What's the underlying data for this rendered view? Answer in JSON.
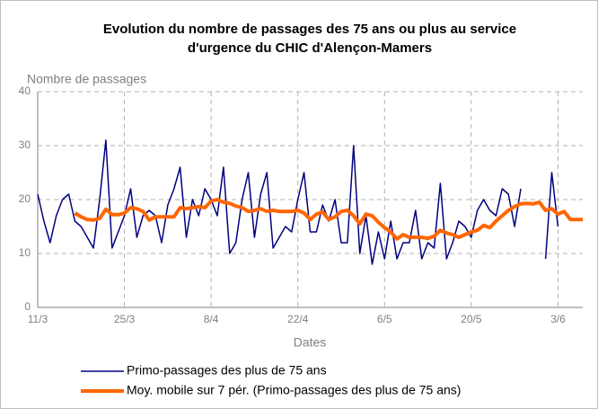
{
  "chart_data": {
    "type": "line",
    "title": "Evolution du nombre de passages des 75 ans ou plus au service",
    "title_line2": "d'urgence du CHIC d'Alençon-Mamers",
    "y_label": "Nombre de passages",
    "x_label": "Dates",
    "categories": [
      "11/3",
      null,
      null,
      null,
      null,
      null,
      null,
      null,
      null,
      null,
      null,
      null,
      null,
      null,
      "25/3",
      null,
      null,
      null,
      null,
      null,
      null,
      null,
      null,
      null,
      null,
      null,
      null,
      null,
      "8/4",
      null,
      null,
      null,
      null,
      null,
      null,
      null,
      null,
      null,
      null,
      null,
      null,
      null,
      "22/4",
      null,
      null,
      null,
      null,
      null,
      null,
      null,
      null,
      null,
      null,
      null,
      null,
      null,
      "6/5",
      null,
      null,
      null,
      null,
      null,
      null,
      null,
      null,
      null,
      null,
      null,
      null,
      null,
      "20/5",
      null,
      null,
      null,
      null,
      null,
      null,
      null,
      null,
      null,
      null,
      null,
      null,
      null,
      "3/6",
      null,
      null,
      null,
      null
    ],
    "series": [
      {
        "name": "Primo-passages des plus de 75 ans",
        "color": "#000080",
        "width": 1.5,
        "values": [
          21,
          16,
          12,
          17,
          20,
          21,
          16,
          15,
          13,
          11,
          20,
          31,
          11,
          14,
          17,
          22,
          13,
          17,
          18,
          17,
          12,
          19,
          22,
          26,
          13,
          20,
          17,
          22,
          20,
          17,
          26,
          10,
          12,
          20,
          25,
          13,
          21,
          25,
          11,
          13,
          15,
          14,
          20,
          25,
          14,
          14,
          19,
          16,
          20,
          12,
          12,
          30,
          10,
          17,
          8,
          14,
          9,
          16,
          9,
          12,
          12,
          18,
          9,
          12,
          11,
          23,
          9,
          12,
          16,
          15,
          13,
          18,
          20,
          18,
          17,
          22,
          21,
          15,
          22,
          null,
          null,
          null,
          9,
          25,
          15,
          null,
          null,
          null,
          null
        ]
      },
      {
        "name": "Moy. mobile sur 7 pér. (Primo-passages des plus de 75 ans)",
        "color": "#ff6600",
        "width": 4,
        "values": [
          null,
          null,
          null,
          null,
          null,
          null,
          17.5,
          16.8,
          16.3,
          16.2,
          16.5,
          18.2,
          17.2,
          17.2,
          17.5,
          18.5,
          18.3,
          17.8,
          16.2,
          16.8,
          16.8,
          16.8,
          16.8,
          18.5,
          18.3,
          18.5,
          18.7,
          18.5,
          19.7,
          20,
          19.5,
          19.3,
          18.8,
          18.5,
          17.8,
          18,
          18.3,
          17.8,
          18,
          17.8,
          17.8,
          17.8,
          18,
          17.5,
          16.3,
          17.3,
          17.7,
          16.3,
          16.8,
          17.8,
          18,
          17,
          15.5,
          17.3,
          17,
          15.8,
          14.8,
          14,
          12.7,
          13.5,
          13,
          13,
          13,
          12.8,
          13.2,
          14.3,
          13.8,
          13.5,
          13,
          13.5,
          14,
          14.3,
          15.2,
          14.8,
          16,
          17,
          18,
          18.7,
          19.2,
          19.3,
          19.2,
          19.5,
          18,
          18.3,
          17.3,
          17.8,
          16.3,
          16.3,
          16.3
        ]
      }
    ],
    "ylim": [
      0,
      40
    ],
    "yticks": [
      0,
      10,
      20,
      30,
      40
    ],
    "grid": true
  }
}
